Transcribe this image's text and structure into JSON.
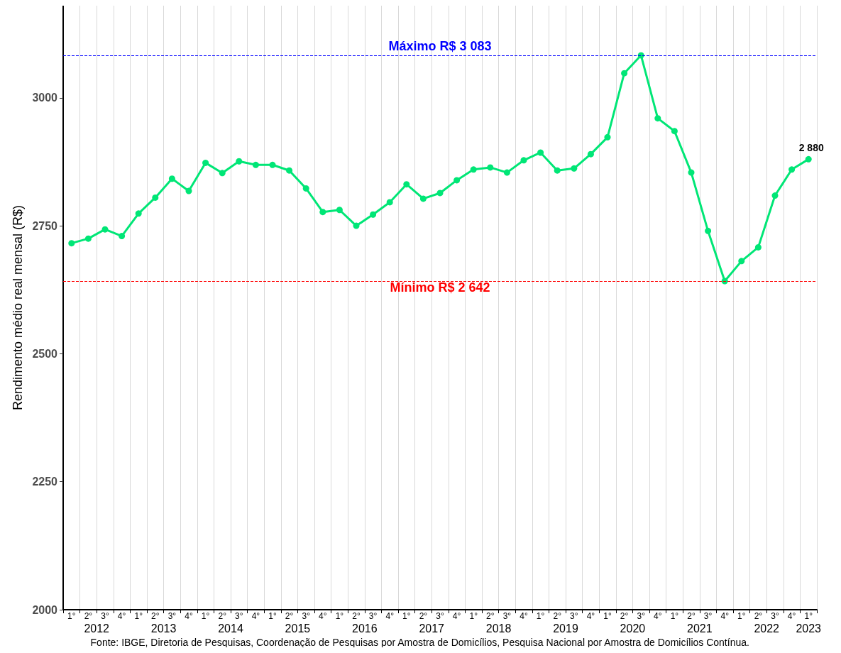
{
  "chart_data": {
    "type": "line",
    "ylabel": "Rendimento médio real mensal (R$)",
    "categories": [
      "1°",
      "2°",
      "3°",
      "4°",
      "1°",
      "2°",
      "3°",
      "4°",
      "1°",
      "2°",
      "3°",
      "4°",
      "1°",
      "2°",
      "3°",
      "4°",
      "1°",
      "2°",
      "3°",
      "4°",
      "1°",
      "2°",
      "3°",
      "4°",
      "1°",
      "2°",
      "3°",
      "4°",
      "1°",
      "2°",
      "3°",
      "4°",
      "1°",
      "2°",
      "3°",
      "4°",
      "1°",
      "2°",
      "3°",
      "4°",
      "1°",
      "2°",
      "3°",
      "4°",
      "1°"
    ],
    "series": [
      {
        "color": "#00e676",
        "values": [
          2716,
          2725,
          2743,
          2730,
          2774,
          2805,
          2842,
          2818,
          2873,
          2853,
          2876,
          2869,
          2869,
          2858,
          2823,
          2777,
          2781,
          2750,
          2772,
          2796,
          2831,
          2803,
          2814,
          2839,
          2860,
          2864,
          2854,
          2878,
          2893,
          2858,
          2862,
          2890,
          2923,
          3048,
          3083,
          2960,
          2935,
          2854,
          2740,
          2642,
          2681,
          2708,
          2809,
          2860,
          2880
        ],
        "value_labels": [
          null,
          null,
          null,
          null,
          null,
          null,
          null,
          null,
          null,
          null,
          null,
          null,
          null,
          null,
          null,
          null,
          null,
          null,
          null,
          null,
          null,
          null,
          null,
          null,
          null,
          null,
          null,
          null,
          null,
          null,
          null,
          null,
          null,
          null,
          null,
          null,
          null,
          null,
          null,
          null,
          null,
          null,
          null,
          null,
          "2 880"
        ]
      }
    ],
    "ylim": [
      2000,
      3180
    ],
    "yticks": [
      2000,
      2250,
      2500,
      2750,
      3000
    ],
    "ref_lines": [
      {
        "axis": "y",
        "value": 3083,
        "label": "Máximo R$ 3 083",
        "color": "#0000ff",
        "line_style": "dashed"
      },
      {
        "axis": "y",
        "value": 2642,
        "label": "Mínimo R$ 2 642",
        "color": "#ff0000",
        "line_style": "dashed"
      }
    ],
    "annotations": [
      "2012",
      "2013",
      "2014",
      "2015",
      "2016",
      "2017",
      "2018",
      "2019",
      "2020",
      "2021",
      "2022",
      "2023",
      "Fonte: IBGE, Diretoria de Pesquisas, Coordenação de Pesquisas por Amostra de Domicílios, Pesquisa Nacional por Amostra de Domicílios Contínua."
    ],
    "grid": "x",
    "marker": "circle",
    "line_style": "solid"
  }
}
